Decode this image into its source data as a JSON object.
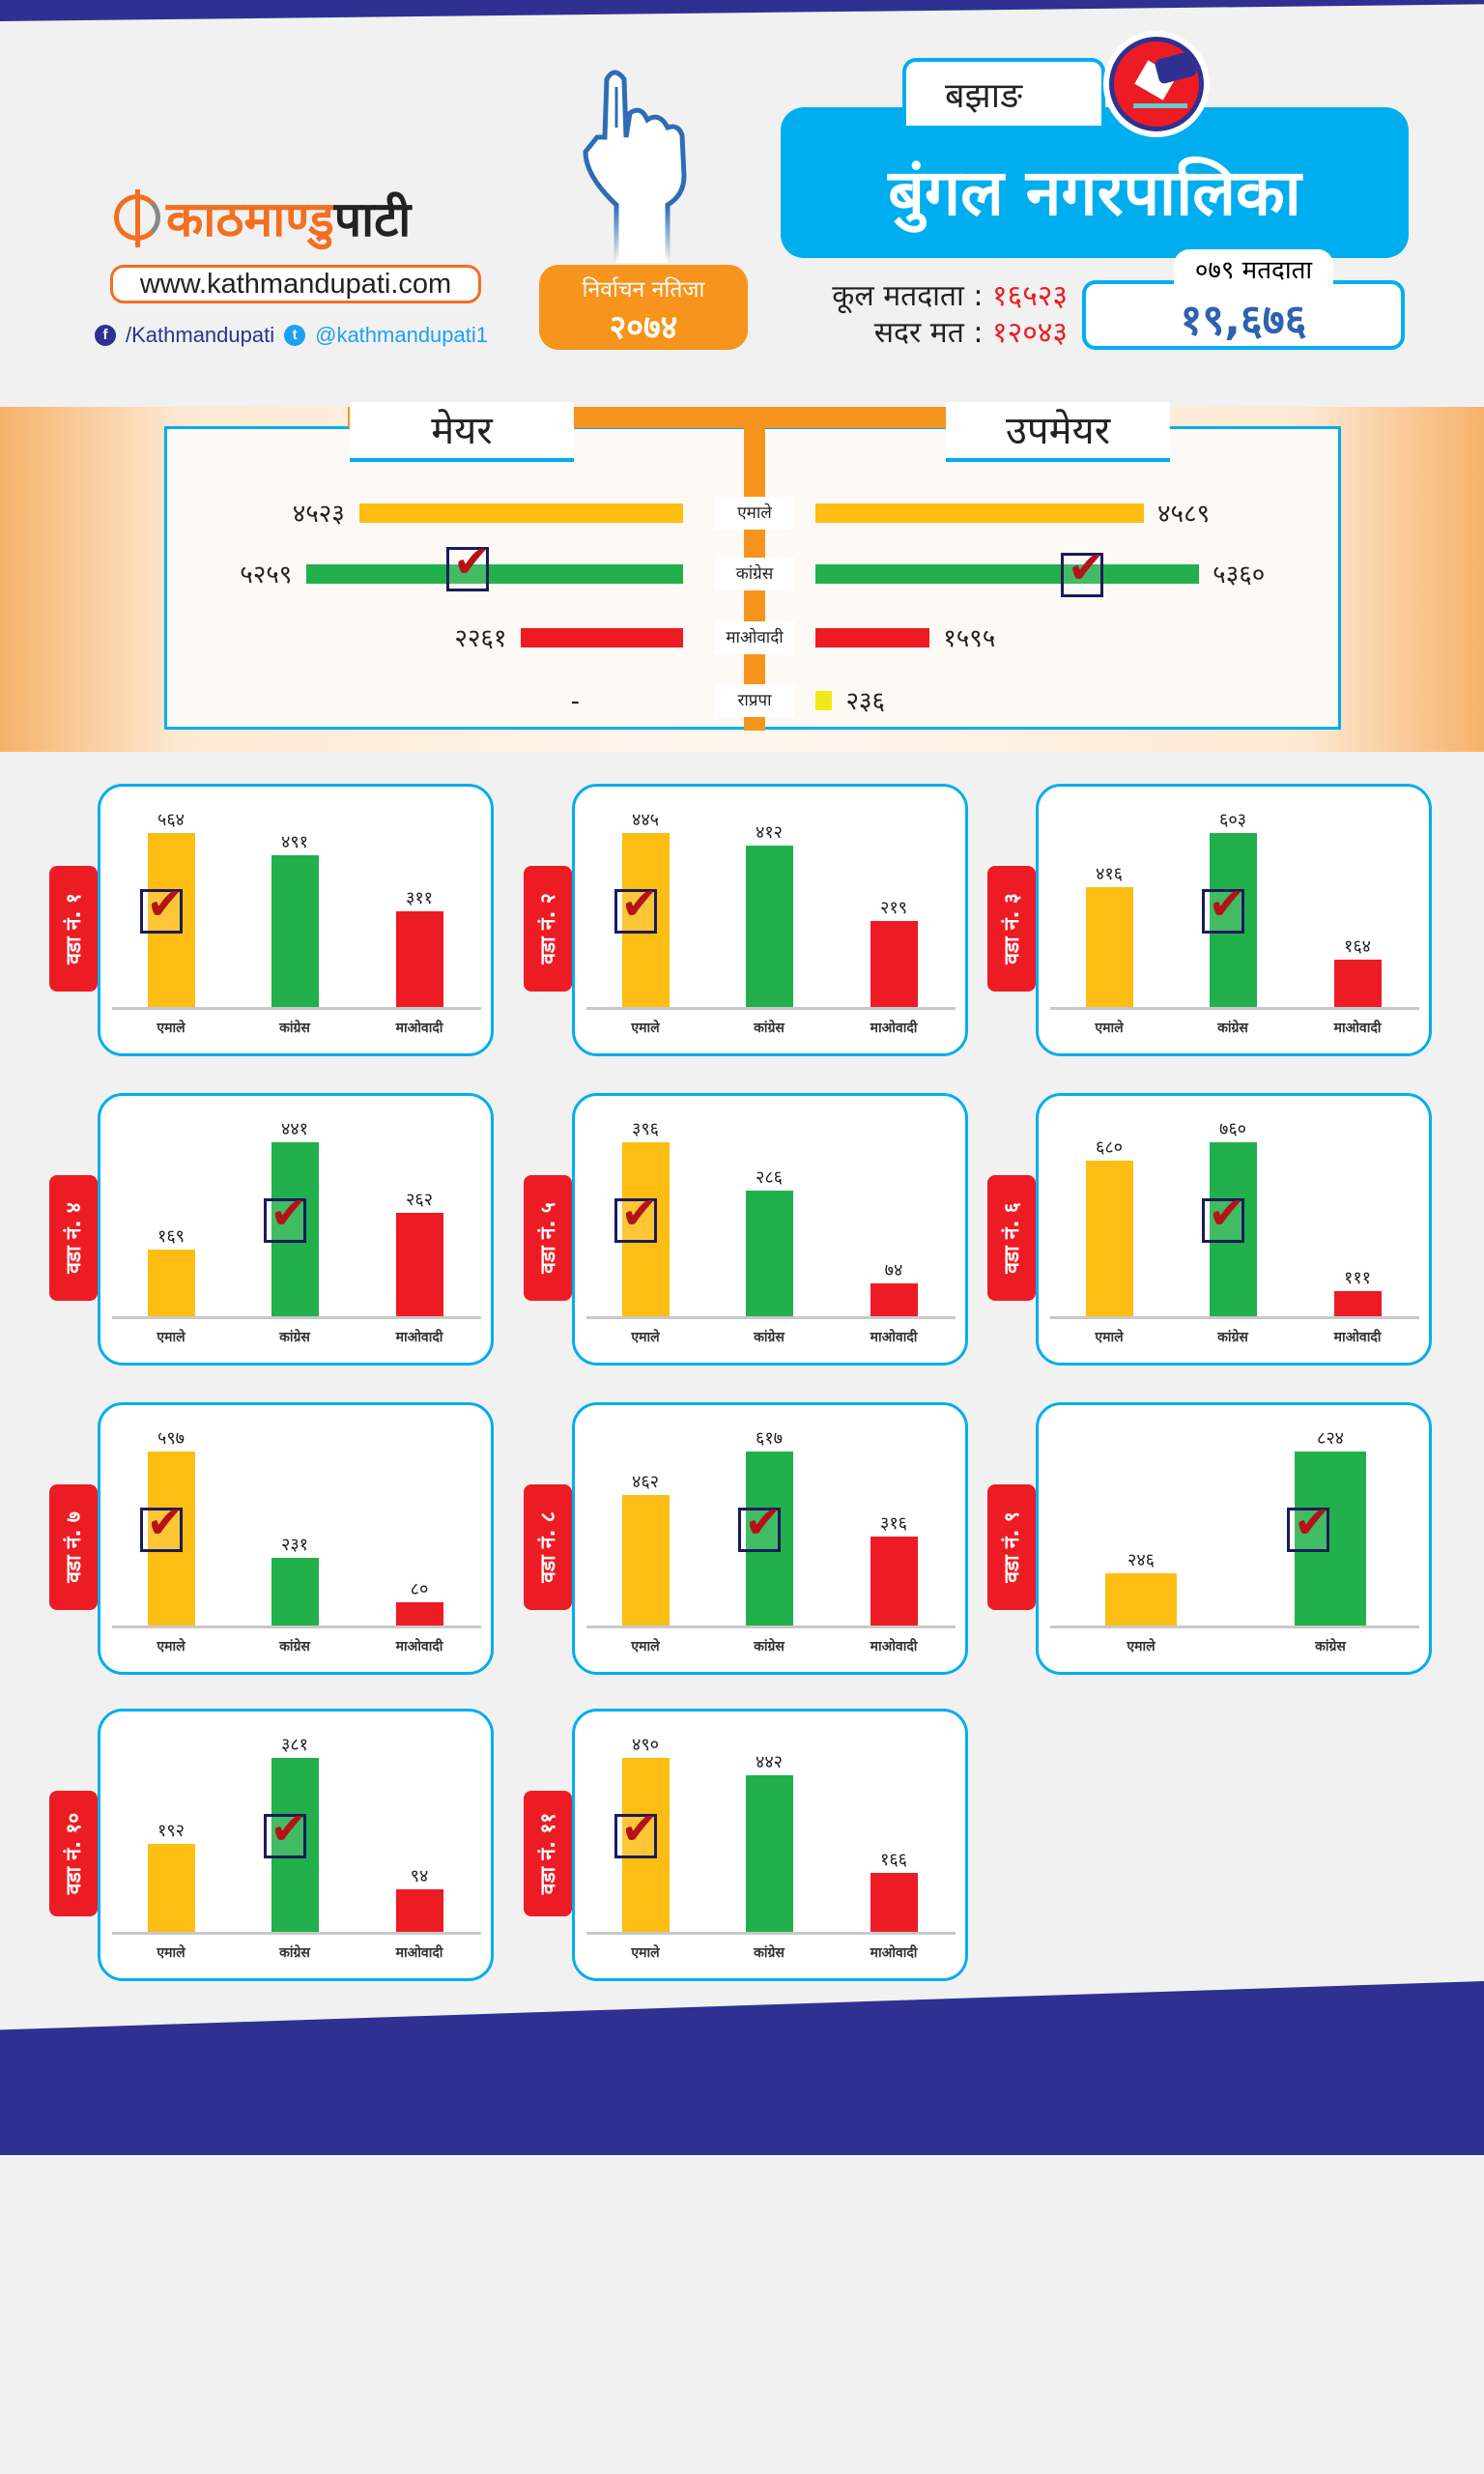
{
  "brand": {
    "logo_part1": "काठमाण्डु",
    "logo_part2": "पाटी",
    "website": "www.kathmandupati.com",
    "facebook": "/Kathmandupati",
    "twitter": "@kathmandupati1"
  },
  "election": {
    "title": "निर्वाचन नतिजा",
    "year": "२०७४"
  },
  "header": {
    "district": "बझाङ",
    "municipality": "बुंगल नगरपालिका",
    "total_voters_label": "कूल मतदाता :",
    "total_voters": "१६५२३",
    "valid_votes_label": "सदर मत :",
    "valid_votes": "१२०४३",
    "voters_079_label": "०७९ मतदाता",
    "voters_079": "१९,६७६"
  },
  "summary": {
    "mayor_label": "मेयर",
    "deputy_label": "उपमेयर",
    "parties": [
      "एमाले",
      "कांग्रेस",
      "माओवादी",
      "राप्रपा"
    ],
    "mayor": [
      {
        "party": "एमाले",
        "votes": 4523,
        "votes_text": "४५२३",
        "winner": false
      },
      {
        "party": "कांग्रेस",
        "votes": 5259,
        "votes_text": "५२५९",
        "winner": true
      },
      {
        "party": "माओवादी",
        "votes": 2261,
        "votes_text": "२२६१",
        "winner": false
      },
      {
        "party": "राप्रपा",
        "votes": 0,
        "votes_text": "-",
        "winner": false
      }
    ],
    "deputy": [
      {
        "party": "एमाले",
        "votes": 4589,
        "votes_text": "४५८९",
        "winner": false
      },
      {
        "party": "कांग्रेस",
        "votes": 5360,
        "votes_text": "५३६०",
        "winner": true
      },
      {
        "party": "माओवादी",
        "votes": 1595,
        "votes_text": "१५९५",
        "winner": false
      },
      {
        "party": "राप्रपा",
        "votes": 236,
        "votes_text": "२३६",
        "winner": false
      }
    ]
  },
  "colors": {
    "uml": "#fdbd13",
    "congress": "#21b04b",
    "maoist": "#ed1c24",
    "rpp": "#f2e91a",
    "accent": "#00aeef",
    "navy": "#2e3192"
  },
  "wards": [
    {
      "label": "वडा नं. १",
      "results": [
        {
          "party": "एमाले",
          "votes": 564,
          "votes_text": "५६४"
        },
        {
          "party": "कांग्रेस",
          "votes": 491,
          "votes_text": "४९१"
        },
        {
          "party": "माओवादी",
          "votes": 311,
          "votes_text": "३११"
        }
      ],
      "winner": 0
    },
    {
      "label": "वडा नं. २",
      "results": [
        {
          "party": "एमाले",
          "votes": 445,
          "votes_text": "४४५"
        },
        {
          "party": "कांग्रेस",
          "votes": 412,
          "votes_text": "४१२"
        },
        {
          "party": "माओवादी",
          "votes": 219,
          "votes_text": "२१९"
        }
      ],
      "winner": 0
    },
    {
      "label": "वडा नं. ३",
      "results": [
        {
          "party": "एमाले",
          "votes": 416,
          "votes_text": "४१६"
        },
        {
          "party": "कांग्रेस",
          "votes": 603,
          "votes_text": "६०३"
        },
        {
          "party": "माओवादी",
          "votes": 164,
          "votes_text": "१६४"
        }
      ],
      "winner": 1
    },
    {
      "label": "वडा नं. ४",
      "results": [
        {
          "party": "एमाले",
          "votes": 169,
          "votes_text": "१६९"
        },
        {
          "party": "कांग्रेस",
          "votes": 441,
          "votes_text": "४४१"
        },
        {
          "party": "माओवादी",
          "votes": 262,
          "votes_text": "२६२"
        }
      ],
      "winner": 1
    },
    {
      "label": "वडा नं. ५",
      "results": [
        {
          "party": "एमाले",
          "votes": 396,
          "votes_text": "३९६"
        },
        {
          "party": "कांग्रेस",
          "votes": 286,
          "votes_text": "२८६"
        },
        {
          "party": "माओवादी",
          "votes": 74,
          "votes_text": "७४"
        }
      ],
      "winner": 0
    },
    {
      "label": "वडा नं. ६",
      "results": [
        {
          "party": "एमाले",
          "votes": 680,
          "votes_text": "६८०"
        },
        {
          "party": "कांग्रेस",
          "votes": 760,
          "votes_text": "७६०"
        },
        {
          "party": "माओवादी",
          "votes": 111,
          "votes_text": "१११"
        }
      ],
      "winner": 1
    },
    {
      "label": "वडा नं. ७",
      "results": [
        {
          "party": "एमाले",
          "votes": 597,
          "votes_text": "५९७"
        },
        {
          "party": "कांग्रेस",
          "votes": 231,
          "votes_text": "२३१"
        },
        {
          "party": "माओवादी",
          "votes": 80,
          "votes_text": "८०"
        }
      ],
      "winner": 0
    },
    {
      "label": "वडा नं. ८",
      "results": [
        {
          "party": "एमाले",
          "votes": 462,
          "votes_text": "४६२"
        },
        {
          "party": "कांग्रेस",
          "votes": 617,
          "votes_text": "६१७"
        },
        {
          "party": "माओवादी",
          "votes": 316,
          "votes_text": "३१६"
        }
      ],
      "winner": 1
    },
    {
      "label": "वडा नं. ९",
      "results": [
        {
          "party": "एमाले",
          "votes": 246,
          "votes_text": "२४६"
        },
        {
          "party": "कांग्रेस",
          "votes": 824,
          "votes_text": "८२४"
        }
      ],
      "winner": 1
    },
    {
      "label": "वडा नं. १०",
      "results": [
        {
          "party": "एमाले",
          "votes": 192,
          "votes_text": "१९२"
        },
        {
          "party": "कांग्रेस",
          "votes": 381,
          "votes_text": "३८१"
        },
        {
          "party": "माओवादी",
          "votes": 94,
          "votes_text": "९४"
        }
      ],
      "winner": 1
    },
    {
      "label": "वडा नं. ११",
      "results": [
        {
          "party": "एमाले",
          "votes": 490,
          "votes_text": "४९०"
        },
        {
          "party": "कांग्रेस",
          "votes": 442,
          "votes_text": "४४२"
        },
        {
          "party": "माओवादी",
          "votes": 166,
          "votes_text": "१६६"
        }
      ],
      "winner": 0
    }
  ]
}
